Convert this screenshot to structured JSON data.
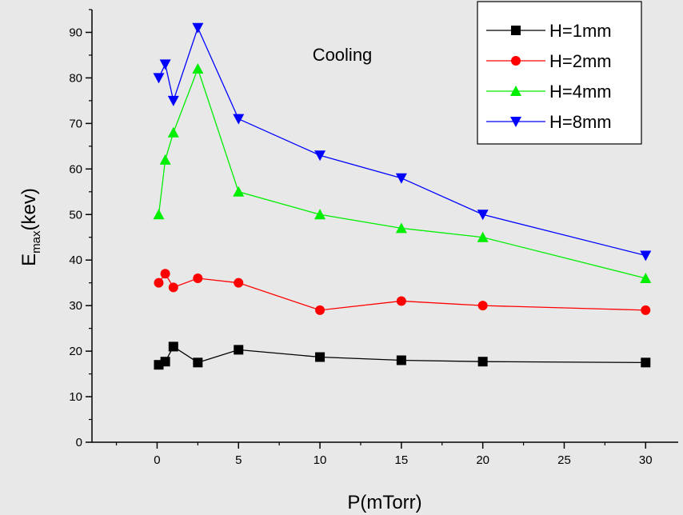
{
  "chart_data": {
    "type": "line",
    "title": "",
    "annotation": "Cooling",
    "xlabel": "P(mTorr)",
    "ylabel_main": "E",
    "ylabel_sub": "max",
    "ylabel_rest": "(kev)",
    "xlim": [
      -4,
      32
    ],
    "ylim": [
      0,
      95
    ],
    "xticks": [
      0,
      5,
      10,
      15,
      20,
      25,
      30
    ],
    "yticks": [
      0,
      10,
      20,
      30,
      40,
      50,
      60,
      70,
      80,
      90
    ],
    "grid": false,
    "legend_position": "top-right",
    "series": [
      {
        "name": "H=1mm",
        "color": "#000000",
        "marker": "square",
        "x": [
          0.1,
          0.5,
          1,
          2.5,
          5,
          10,
          15,
          20,
          30
        ],
        "y": [
          17,
          17.7,
          21,
          17.5,
          20.3,
          18.7,
          18,
          17.7,
          17.5
        ]
      },
      {
        "name": "H=2mm",
        "color": "#ff0000",
        "marker": "circle",
        "x": [
          0.1,
          0.5,
          1,
          2.5,
          5,
          10,
          15,
          20,
          30
        ],
        "y": [
          35,
          37,
          34,
          36,
          35,
          29,
          31,
          30,
          29
        ]
      },
      {
        "name": "H=4mm",
        "color": "#00ee00",
        "marker": "triangle-up",
        "x": [
          0.1,
          0.5,
          1,
          2.5,
          5,
          10,
          15,
          20,
          30
        ],
        "y": [
          50,
          62,
          68,
          82,
          55,
          50,
          47,
          45,
          36
        ]
      },
      {
        "name": "H=8mm",
        "color": "#0000ff",
        "marker": "triangle-down",
        "x": [
          0.1,
          0.5,
          1,
          2.5,
          5,
          10,
          15,
          20,
          30
        ],
        "y": [
          80,
          83,
          75,
          91,
          71,
          63,
          58,
          50,
          41
        ]
      }
    ]
  }
}
